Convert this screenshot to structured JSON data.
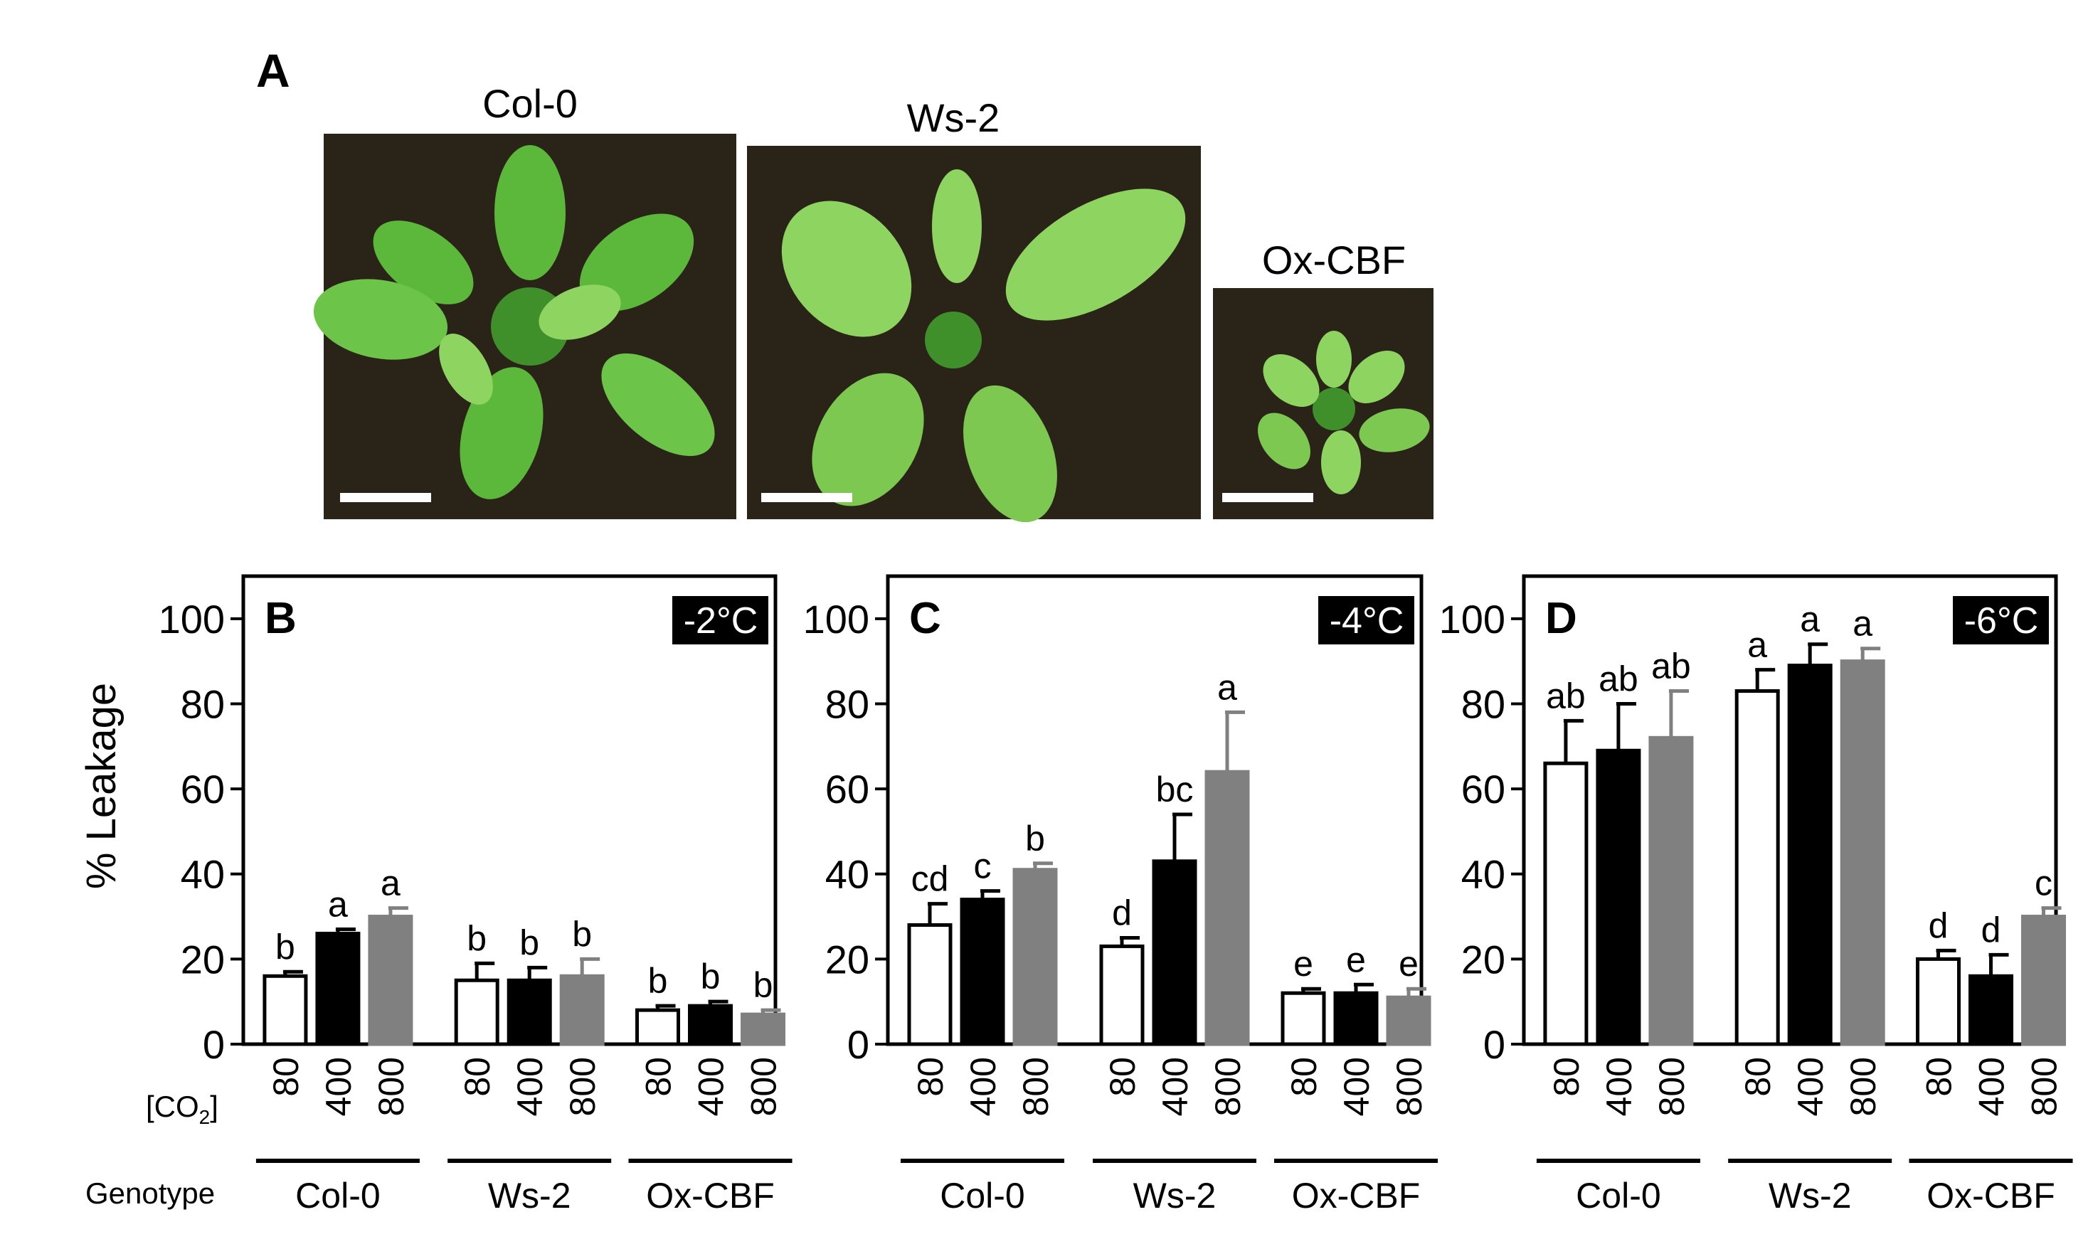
{
  "panel_a": {
    "letter": "A",
    "photos": [
      {
        "label": "Col-0",
        "icon": "rosette-photo-col0"
      },
      {
        "label": "Ws-2",
        "icon": "rosette-photo-ws2"
      },
      {
        "label": "Ox-CBF",
        "icon": "rosette-photo-oxcbf"
      }
    ]
  },
  "axis": {
    "ylabel": "% Leakage",
    "co2_label": "[CO",
    "co2_sub": "2",
    "co2_close": "]",
    "genotype_label": "Genotype"
  },
  "colors": {
    "bar_80": "#ffffff",
    "bar_400": "#000000",
    "bar_800": "#808080",
    "axis": "#000000",
    "photo_bg": "#2a2418",
    "leaf": "#5cb83a",
    "leaf_light": "#8ed460"
  },
  "chart_data": [
    {
      "type": "bar",
      "panel": "B",
      "temperature": "-2°C",
      "ylim": [
        0,
        110
      ],
      "yticks": [
        0,
        20,
        40,
        60,
        80,
        100
      ],
      "groups": [
        "Col-0",
        "Ws-2",
        "Ox-CBF"
      ],
      "co2_levels": [
        "80",
        "400",
        "800"
      ],
      "values": [
        [
          16,
          26,
          30
        ],
        [
          15,
          15,
          16
        ],
        [
          8,
          9,
          7
        ]
      ],
      "errors": [
        [
          1,
          1,
          2
        ],
        [
          4,
          3,
          4
        ],
        [
          1,
          1,
          1
        ]
      ],
      "letters": [
        [
          "b",
          "a",
          "a"
        ],
        [
          "b",
          "b",
          "b"
        ],
        [
          "b",
          "b",
          "b"
        ]
      ]
    },
    {
      "type": "bar",
      "panel": "C",
      "temperature": "-4°C",
      "ylim": [
        0,
        110
      ],
      "yticks": [
        0,
        20,
        40,
        60,
        80,
        100
      ],
      "groups": [
        "Col-0",
        "Ws-2",
        "Ox-CBF"
      ],
      "co2_levels": [
        "80",
        "400",
        "800"
      ],
      "values": [
        [
          28,
          34,
          41
        ],
        [
          23,
          43,
          64
        ],
        [
          12,
          12,
          11
        ]
      ],
      "errors": [
        [
          5,
          2,
          1.5
        ],
        [
          2,
          11,
          14
        ],
        [
          1,
          2,
          2
        ]
      ],
      "letters": [
        [
          "cd",
          "c",
          "b"
        ],
        [
          "d",
          "bc",
          "a"
        ],
        [
          "e",
          "e",
          "e"
        ]
      ]
    },
    {
      "type": "bar",
      "panel": "D",
      "temperature": "-6°C",
      "ylim": [
        0,
        110
      ],
      "yticks": [
        0,
        20,
        40,
        60,
        80,
        100
      ],
      "groups": [
        "Col-0",
        "Ws-2",
        "Ox-CBF"
      ],
      "co2_levels": [
        "80",
        "400",
        "800"
      ],
      "values": [
        [
          66,
          69,
          72
        ],
        [
          83,
          89,
          90
        ],
        [
          20,
          16,
          30
        ]
      ],
      "errors": [
        [
          10,
          11,
          11
        ],
        [
          5,
          5,
          3
        ],
        [
          2,
          5,
          2
        ]
      ],
      "letters": [
        [
          "ab",
          "ab",
          "ab"
        ],
        [
          "a",
          "a",
          "a"
        ],
        [
          "d",
          "d",
          "c"
        ]
      ]
    }
  ]
}
